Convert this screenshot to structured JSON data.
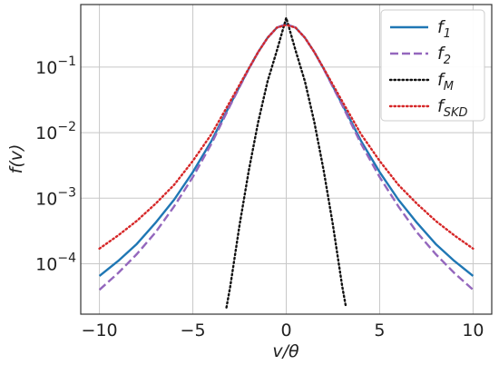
{
  "chart_data": {
    "type": "line",
    "title": "",
    "xlabel": "v/θ",
    "ylabel": "f(v)",
    "xlim": [
      -11,
      11
    ],
    "ylim": [
      1.7e-05,
      0.9
    ],
    "x_scale": "linear",
    "y_scale": "log",
    "x_ticks": [
      -10,
      -5,
      0,
      5,
      10
    ],
    "x_tick_labels": [
      "−10",
      "−5",
      "0",
      "5",
      "10"
    ],
    "y_ticks": [
      0.0001,
      0.001,
      0.01,
      0.1
    ],
    "y_tick_labels": [
      {
        "base": "10",
        "exp": "−4"
      },
      {
        "base": "10",
        "exp": "−3"
      },
      {
        "base": "10",
        "exp": "−2"
      },
      {
        "base": "10",
        "exp": "−1"
      }
    ],
    "grid": true,
    "legend_position": "top-right",
    "series": [
      {
        "name": "f1",
        "label_main": "f",
        "label_sub": "1",
        "color": "#1f77b4",
        "style": "solid",
        "x": [
          -10,
          -9,
          -8,
          -7,
          -6,
          -5,
          -4,
          -3,
          -2,
          -1.5,
          -1,
          -0.5,
          0,
          0.5,
          1,
          1.5,
          2,
          3,
          4,
          5,
          6,
          7,
          8,
          9,
          10
        ],
        "y": [
          6.5e-05,
          0.00011,
          0.0002,
          0.00042,
          0.00095,
          0.0025,
          0.0075,
          0.027,
          0.095,
          0.17,
          0.28,
          0.4,
          0.45,
          0.4,
          0.28,
          0.17,
          0.095,
          0.027,
          0.0075,
          0.0025,
          0.00095,
          0.00042,
          0.0002,
          0.00011,
          6.5e-05
        ]
      },
      {
        "name": "f2",
        "label_main": "f",
        "label_sub": "2",
        "color": "#9467bd",
        "style": "dashed",
        "x": [
          -10,
          -9,
          -8,
          -7,
          -6,
          -5,
          -4,
          -3,
          -2,
          -1.5,
          -1,
          -0.5,
          0,
          0.5,
          1,
          1.5,
          2,
          3,
          4,
          5,
          6,
          7,
          8,
          9,
          10
        ],
        "y": [
          4e-05,
          7.2e-05,
          0.00014,
          0.0003,
          0.00075,
          0.0021,
          0.0068,
          0.026,
          0.094,
          0.17,
          0.28,
          0.4,
          0.45,
          0.4,
          0.28,
          0.17,
          0.094,
          0.026,
          0.0068,
          0.0021,
          0.00075,
          0.0003,
          0.00014,
          7.2e-05,
          4e-05
        ]
      },
      {
        "name": "fM",
        "label_main": "f",
        "label_sub": "M",
        "color": "#111111",
        "style": "dotted",
        "x": [
          -3.2,
          -3,
          -2.5,
          -2,
          -1.5,
          -1,
          -0.5,
          0,
          0.5,
          1,
          1.5,
          2,
          2.5,
          3,
          3.2
        ],
        "y": [
          2.15e-05,
          4.45e-05,
          0.000387,
          0.00268,
          0.0146,
          0.0605,
          0.179,
          0.564,
          0.179,
          0.0605,
          0.0146,
          0.00268,
          0.000387,
          4.45e-05,
          2.15e-05
        ]
      },
      {
        "name": "fSKD",
        "label_main": "f",
        "label_sub": "SKD",
        "color": "#d62728",
        "style": "dotted",
        "x": [
          -10,
          -9,
          -8,
          -7,
          -6,
          -5,
          -4,
          -3,
          -2,
          -1.5,
          -1,
          -0.5,
          0,
          0.5,
          1,
          1.5,
          2,
          3,
          4,
          5,
          6,
          7,
          8,
          9,
          10
        ],
        "y": [
          0.00017,
          0.00027,
          0.00045,
          0.00082,
          0.0016,
          0.0037,
          0.0095,
          0.03,
          0.096,
          0.17,
          0.28,
          0.4,
          0.44,
          0.4,
          0.28,
          0.17,
          0.096,
          0.03,
          0.0095,
          0.0037,
          0.0016,
          0.00082,
          0.00045,
          0.00027,
          0.00017
        ]
      }
    ]
  }
}
